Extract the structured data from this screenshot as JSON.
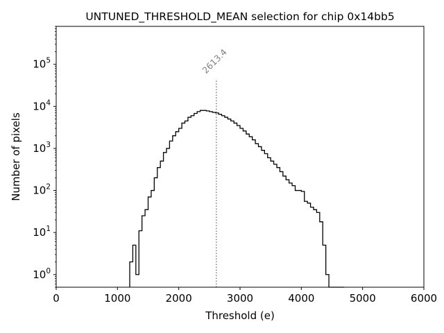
{
  "chart_data": {
    "type": "histogram",
    "title": "UNTUNED_THRESHOLD_MEAN selection for chip 0x14bb5",
    "xlabel": "Threshold (e)",
    "ylabel": "Number of pixels",
    "xlim": [
      0,
      6000
    ],
    "xticks": [
      {
        "value": 0,
        "label": "0"
      },
      {
        "value": 1000,
        "label": "1000"
      },
      {
        "value": 2000,
        "label": "2000"
      },
      {
        "value": 3000,
        "label": "3000"
      },
      {
        "value": 4000,
        "label": "4000"
      },
      {
        "value": 5000,
        "label": "5000"
      },
      {
        "value": 6000,
        "label": "6000"
      }
    ],
    "yscale": "log",
    "ylim": [
      0.5,
      800000
    ],
    "yticks": [
      {
        "value": 1,
        "base": "10",
        "exp": "0"
      },
      {
        "value": 10,
        "base": "10",
        "exp": "1"
      },
      {
        "value": 100,
        "base": "10",
        "exp": "2"
      },
      {
        "value": 1000,
        "base": "10",
        "exp": "3"
      },
      {
        "value": 10000,
        "base": "10",
        "exp": "4"
      },
      {
        "value": 100000,
        "base": "10",
        "exp": "5"
      }
    ],
    "bin_edges": [
      1200,
      1250,
      1300,
      1350,
      1400,
      1450,
      1500,
      1550,
      1600,
      1650,
      1700,
      1750,
      1800,
      1850,
      1900,
      1950,
      2000,
      2050,
      2100,
      2150,
      2200,
      2250,
      2300,
      2350,
      2400,
      2450,
      2500,
      2550,
      2600,
      2650,
      2700,
      2750,
      2800,
      2850,
      2900,
      2950,
      3000,
      3050,
      3100,
      3150,
      3200,
      3250,
      3300,
      3350,
      3400,
      3450,
      3500,
      3550,
      3600,
      3650,
      3700,
      3750,
      3800,
      3850,
      3900,
      3950,
      4000,
      4050,
      4100,
      4150,
      4200,
      4250,
      4300,
      4350,
      4400,
      4450,
      4500,
      4550,
      4600,
      4650,
      4700
    ],
    "counts": [
      2,
      5,
      1,
      11,
      25,
      35,
      70,
      100,
      200,
      350,
      500,
      800,
      1000,
      1500,
      2000,
      2500,
      3000,
      4000,
      4500,
      5500,
      6000,
      6800,
      7500,
      8000,
      8000,
      7800,
      7500,
      7200,
      7000,
      6500,
      6000,
      5500,
      5000,
      4500,
      4000,
      3500,
      3000,
      2600,
      2200,
      1900,
      1600,
      1300,
      1100,
      900,
      750,
      600,
      500,
      420,
      350,
      280,
      220,
      180,
      150,
      130,
      100,
      100,
      95,
      55,
      50,
      40,
      35,
      30,
      18,
      5,
      1,
      0,
      0,
      0,
      0,
      0
    ],
    "series": [
      {
        "name": "UNTUNED_THRESHOLD_MEAN",
        "color": "#000000"
      }
    ],
    "threshold_line": {
      "x": 2613.4,
      "label": "2613.4",
      "y_top": 45000,
      "color": "#808080"
    }
  }
}
